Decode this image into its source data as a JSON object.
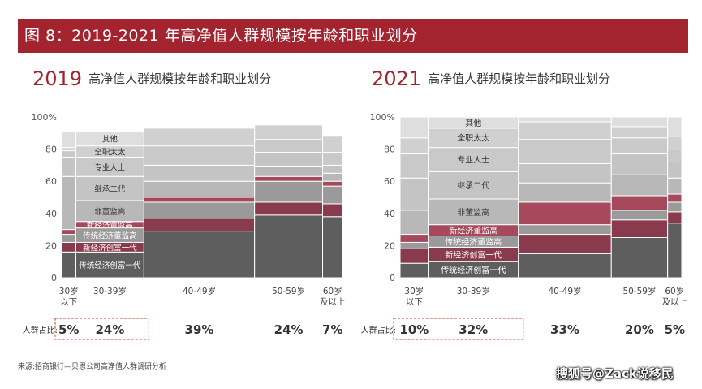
{
  "header": {
    "title": "图 8：2019-2021 年高净值人群规模按年龄和职业划分"
  },
  "colors": {
    "brand": "#a3242e",
    "seg0": "#5e5e5e",
    "seg1": "#8a3a4d",
    "seg2": "#9a9a9a",
    "seg3": "#a7495c",
    "seg4": "#b8b8b8",
    "seg5": "#c4c4c4",
    "seg6": "#c9c9c9",
    "seg7": "#d0d0d0",
    "seg8": "#dedede",
    "dashed_box": "#c0392b"
  },
  "chart_data": [
    {
      "type": "marimekko",
      "year": "2019",
      "subtitle": "高净值人群规模按年龄和职业划分",
      "y_ticks": [
        "0",
        "20",
        "40",
        "60",
        "80",
        "100%"
      ],
      "ylim": [
        0,
        100
      ],
      "occupation_order": [
        "传统经济创富一代",
        "新经济创富一代",
        "传统经济董监高",
        "新经济董监高",
        "非董监高",
        "继承二代",
        "专业人士",
        "全职太太",
        "其他"
      ],
      "columns": [
        {
          "age": "30岁以下",
          "age_lines": [
            "30岁",
            "以下"
          ],
          "width_pct": 5,
          "width_label": "5%",
          "segments": [
            16,
            6,
            5,
            3,
            33,
            12,
            4,
            2,
            10
          ]
        },
        {
          "age": "30-39岁",
          "age_lines": [
            "30-39岁"
          ],
          "width_pct": 24,
          "width_label": "24%",
          "segments": [
            16,
            6,
            9,
            4,
            13,
            15,
            12,
            7,
            9
          ]
        },
        {
          "age": "40-49岁",
          "age_lines": [
            "40-49岁"
          ],
          "width_pct": 39,
          "width_label": "39%",
          "segments": [
            29,
            8,
            10,
            3,
            10,
            10,
            12,
            11,
            0
          ]
        },
        {
          "age": "50-59岁",
          "age_lines": [
            "50-59岁"
          ],
          "width_pct": 24,
          "width_label": "24%",
          "segments": [
            39,
            8,
            13,
            3,
            6,
            9,
            8,
            9,
            0
          ]
        },
        {
          "age": "60岁及以上",
          "age_lines": [
            "60岁",
            "及以上"
          ],
          "width_pct": 7,
          "width_label": "7%",
          "segments": [
            38,
            8,
            11,
            3,
            5,
            5,
            8,
            10,
            0
          ]
        }
      ],
      "segment_labels": [
        "传统经济创富一代",
        "新经济创富一代",
        "传统经济董监高",
        "新经济董监高",
        "非董监高",
        "继承二代",
        "专业人士",
        "全职太太",
        "其他"
      ],
      "share_row_label": "人群占比:"
    },
    {
      "type": "marimekko",
      "year": "2021",
      "subtitle": "高净值人群规模按年龄和职业划分",
      "y_ticks": [
        "0",
        "20",
        "40",
        "60",
        "80",
        "100%"
      ],
      "ylim": [
        0,
        100
      ],
      "occupation_order": [
        "传统经济创富一代",
        "新经济创富一代",
        "传统经济董监高",
        "新经济董监高",
        "非董监高",
        "继承二代",
        "专业人士",
        "全职太太",
        "其他"
      ],
      "columns": [
        {
          "age": "30岁以下",
          "age_lines": [
            "30岁",
            "以下"
          ],
          "width_pct": 10,
          "width_label": "10%",
          "segments": [
            9,
            9,
            4,
            5,
            15,
            20,
            15,
            10,
            13
          ]
        },
        {
          "age": "30-39岁",
          "age_lines": [
            "30-39岁"
          ],
          "width_pct": 32,
          "width_label": "32%",
          "segments": [
            10,
            9,
            7,
            7,
            16,
            17,
            15,
            12,
            7
          ]
        },
        {
          "age": "40-49岁",
          "age_lines": [
            "40-49岁"
          ],
          "width_pct": 33,
          "width_label": "33%",
          "segments": [
            15,
            12,
            6,
            14,
            12,
            12,
            15,
            11,
            3
          ]
        },
        {
          "age": "50-59岁",
          "age_lines": [
            "50-59岁"
          ],
          "width_pct": 20,
          "width_label": "20%",
          "segments": [
            25,
            11,
            6,
            9,
            13,
            13,
            10,
            7,
            6
          ]
        },
        {
          "age": "60岁及以上",
          "age_lines": [
            "60岁",
            "及以上"
          ],
          "width_pct": 5,
          "width_label": "5%",
          "segments": [
            34,
            7,
            6,
            5,
            10,
            10,
            8,
            8,
            12
          ]
        }
      ],
      "segment_labels": [
        "传统经济创富一代",
        "新经济创富一代",
        "传统经济董监高",
        "新经济董监高",
        "非董监高",
        "继承二代",
        "专业人士",
        "全职太太",
        "其他"
      ],
      "share_row_label": "人群占比:"
    }
  ],
  "footer": {
    "source": "来源:招商银行—贝恩公司高净值人群调研分析",
    "watermark": "搜狐号@Zack说移民"
  }
}
